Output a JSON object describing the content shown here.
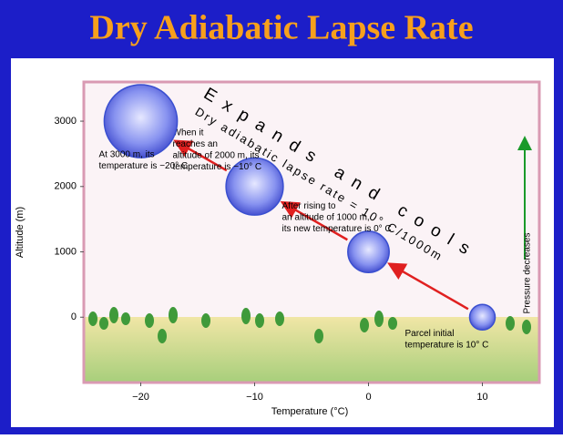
{
  "chart_data": {
    "type": "scatter",
    "title": "Dry Adiabatic Lapse Rate",
    "xlabel": "Temperature (°C)",
    "ylabel": "Altitude (m)",
    "xlim": [
      -25,
      15
    ],
    "ylim": [
      -1000,
      3600
    ],
    "xticks": [
      {
        "value": -20,
        "label": "−20"
      },
      {
        "value": -10,
        "label": "−10"
      },
      0,
      10
    ],
    "yticks": [
      0,
      1000,
      2000,
      3000
    ],
    "color": "#3a4fd0",
    "x": [
      10,
      0,
      -10,
      -20
    ],
    "values": [
      0,
      1000,
      2000,
      3000
    ],
    "point_labels": [
      [
        "Parcel initial",
        "temperature is 10° C"
      ],
      [
        "After rising to",
        "an altitude of 1000 m,",
        "its new temperature is 0° C"
      ],
      [
        "When it",
        "reaches an",
        "altitude of 2000 m, its",
        "temperature is −10° C"
      ],
      [
        "At 3000 m, its",
        "temperature is −20° C"
      ]
    ],
    "annotations": [
      "Expands and cools",
      "Dry adiabatic lapse rate = 10° C/1000m",
      "Pressure decreases"
    ]
  }
}
